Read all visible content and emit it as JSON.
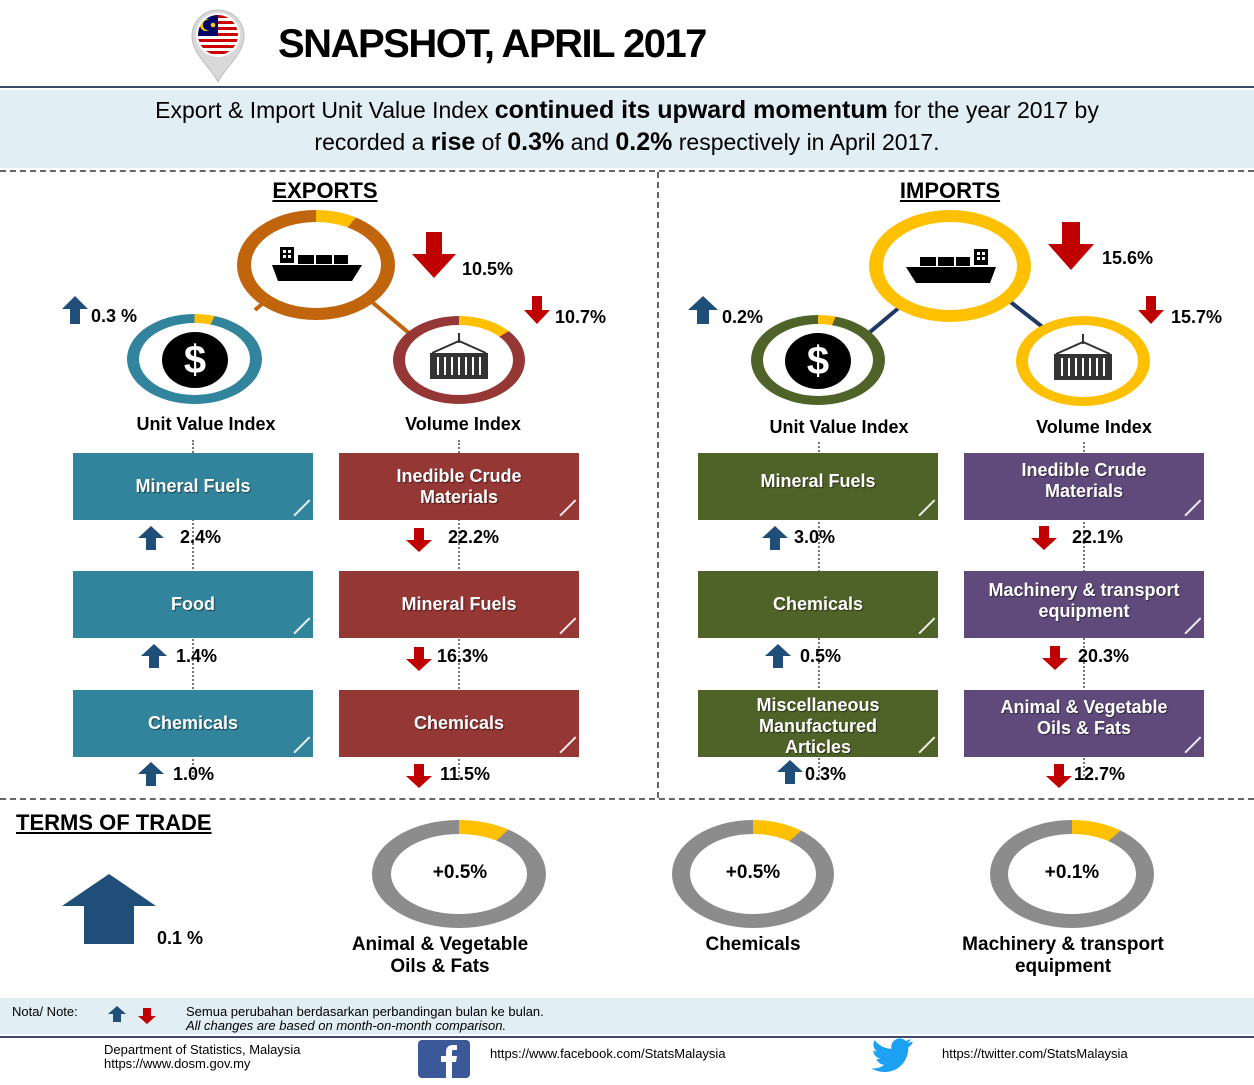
{
  "header": {
    "title": "SNAPSHOT, APRIL 2017"
  },
  "banner": {
    "part1": "Export & Import Unit Value Index ",
    "part2": "continued its upward momentum",
    "part3": " for the year 2017 by",
    "part4": "recorded a ",
    "part5": "rise",
    "part6": " of  ",
    "part7": "0.3%",
    "part8": " and ",
    "part9": "0.2%",
    "part10": " respectively in April 2017."
  },
  "exports": {
    "heading": "EXPORTS",
    "total_change": "10.5%",
    "unit_value_change": "0.3 %",
    "volume_change": "10.7%",
    "unit_value_label": "Unit Value Index",
    "volume_label": "Volume Index",
    "unit_value_items": [
      {
        "name": "Mineral Fuels",
        "change": "2.4%",
        "direction": "up"
      },
      {
        "name": "Food",
        "change": "1.4%",
        "direction": "up"
      },
      {
        "name": "Chemicals",
        "change": "1.0%",
        "direction": "up"
      }
    ],
    "volume_items": [
      {
        "name": "Inedible Crude Materials",
        "change": "22.2%",
        "direction": "down"
      },
      {
        "name": "Mineral Fuels",
        "change": "16.3%",
        "direction": "down"
      },
      {
        "name": "Chemicals",
        "change": "11.5%",
        "direction": "down"
      }
    ]
  },
  "imports": {
    "heading": "IMPORTS",
    "total_change": "15.6%",
    "unit_value_change": "0.2%",
    "volume_change": "15.7%",
    "unit_value_label": "Unit Value Index",
    "volume_label": "Volume Index",
    "unit_value_items": [
      {
        "name": "Mineral Fuels",
        "change": "3.0%",
        "direction": "up"
      },
      {
        "name": "Chemicals",
        "change": "0.5%",
        "direction": "up"
      },
      {
        "name": "Miscellaneous Manufactured Articles",
        "change": "0.3%",
        "direction": "up"
      }
    ],
    "volume_items": [
      {
        "name": "Inedible Crude Materials",
        "change": "22.1%",
        "direction": "down"
      },
      {
        "name": "Machinery & transport equipment",
        "change": "20.3%",
        "direction": "down"
      },
      {
        "name": "Animal & Vegetable Oils & Fats",
        "change": "12.7%",
        "direction": "down"
      }
    ]
  },
  "terms_of_trade": {
    "heading": "TERMS OF TRADE",
    "total_change": "0.1 %",
    "items": [
      {
        "value": "+0.5%",
        "label_line1": "Animal & Vegetable",
        "label_line2": "Oils & Fats"
      },
      {
        "value": "+0.5%",
        "label_line1": "Chemicals",
        "label_line2": ""
      },
      {
        "value": "+0.1%",
        "label_line1": "Machinery & transport",
        "label_line2": "equipment"
      }
    ]
  },
  "note": {
    "label": "Nota/ Note:",
    "malay": "Semua perubahan berdasarkan perbandingan bulan ke bulan.",
    "english": "All changes are based on month-on-month comparison."
  },
  "footer": {
    "dept": "Department of Statistics, Malaysia",
    "site": "https://www.dosm.gov.my",
    "facebook": "https://www.facebook.com/StatsMalaysia",
    "twitter": "https://twitter.com/StatsMalaysia"
  },
  "colors": {
    "up": "#1f4e79",
    "down": "#c00000",
    "exp_uvi": "#31849b",
    "exp_vol": "#953735",
    "imp_uvi": "#4f6228",
    "imp_vol": "#604a7b",
    "exp_total_ring": "#c0650c",
    "imp_total_ring": "#1f3864",
    "accent": "#ffc000"
  },
  "icons": [
    "malaysia-flag-pin-icon",
    "ship-icon",
    "dollar-icon",
    "container-icon",
    "facebook-icon",
    "twitter-icon"
  ]
}
